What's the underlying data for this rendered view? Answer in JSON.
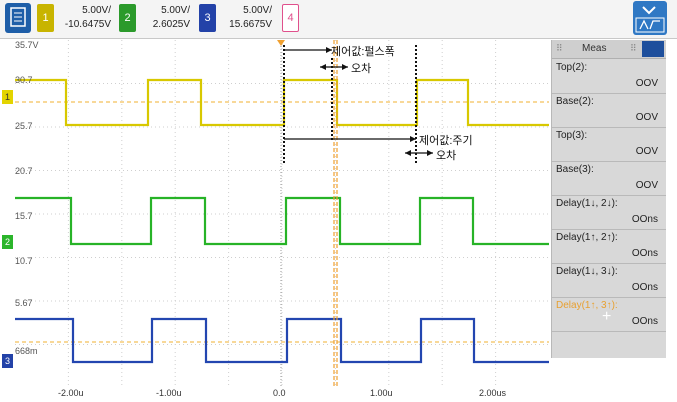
{
  "toolbar": {
    "ch1": {
      "number": "1",
      "volts_div": "5.00V/",
      "offset": "-10.6475V",
      "color": "#e3d400"
    },
    "ch2": {
      "number": "2",
      "volts_div": "5.00V/",
      "offset": "2.6025V",
      "color": "#2bb52b"
    },
    "ch3": {
      "number": "3",
      "volts_div": "5.00V/",
      "offset": "15.6675V",
      "color": "#2342a8"
    },
    "ch4": {
      "number": "4",
      "color": "#e0508c"
    }
  },
  "measurements": {
    "title": "Meas",
    "items": [
      {
        "label": "Top(2):",
        "value": "OOV"
      },
      {
        "label": "Base(2):",
        "value": "OOV"
      },
      {
        "label": "Top(3):",
        "value": "OOV"
      },
      {
        "label": "Base(3):",
        "value": "OOV"
      },
      {
        "label": "Delay(1↓, 2↓):",
        "value": "OOns"
      },
      {
        "label": "Delay(1↑, 2↑):",
        "value": "OOns"
      },
      {
        "label": "Delay(1↓, 3↓):",
        "value": "OOns"
      },
      {
        "label": "Delay(1↑, 3↑):",
        "value": "OOns"
      }
    ],
    "add_label": "+"
  },
  "screen": {
    "ch1_scale": {
      "top": "35.7V",
      "mid": "30.7",
      "bottom": "25.7"
    },
    "ch2_scale": {
      "top": "20.7",
      "mid": "15.7",
      "bottom": "10.7"
    },
    "ch3_scale": {
      "top": "5.67",
      "bottom": "668m"
    },
    "x_ticks": [
      "-2.00u",
      "-1.00u",
      "0.0",
      "1.00u",
      "2.00us"
    ],
    "annotations": {
      "pulse_width": "제어값:펄스폭",
      "error1": "오차",
      "period": "제어값:주기",
      "error2": "오차"
    }
  }
}
